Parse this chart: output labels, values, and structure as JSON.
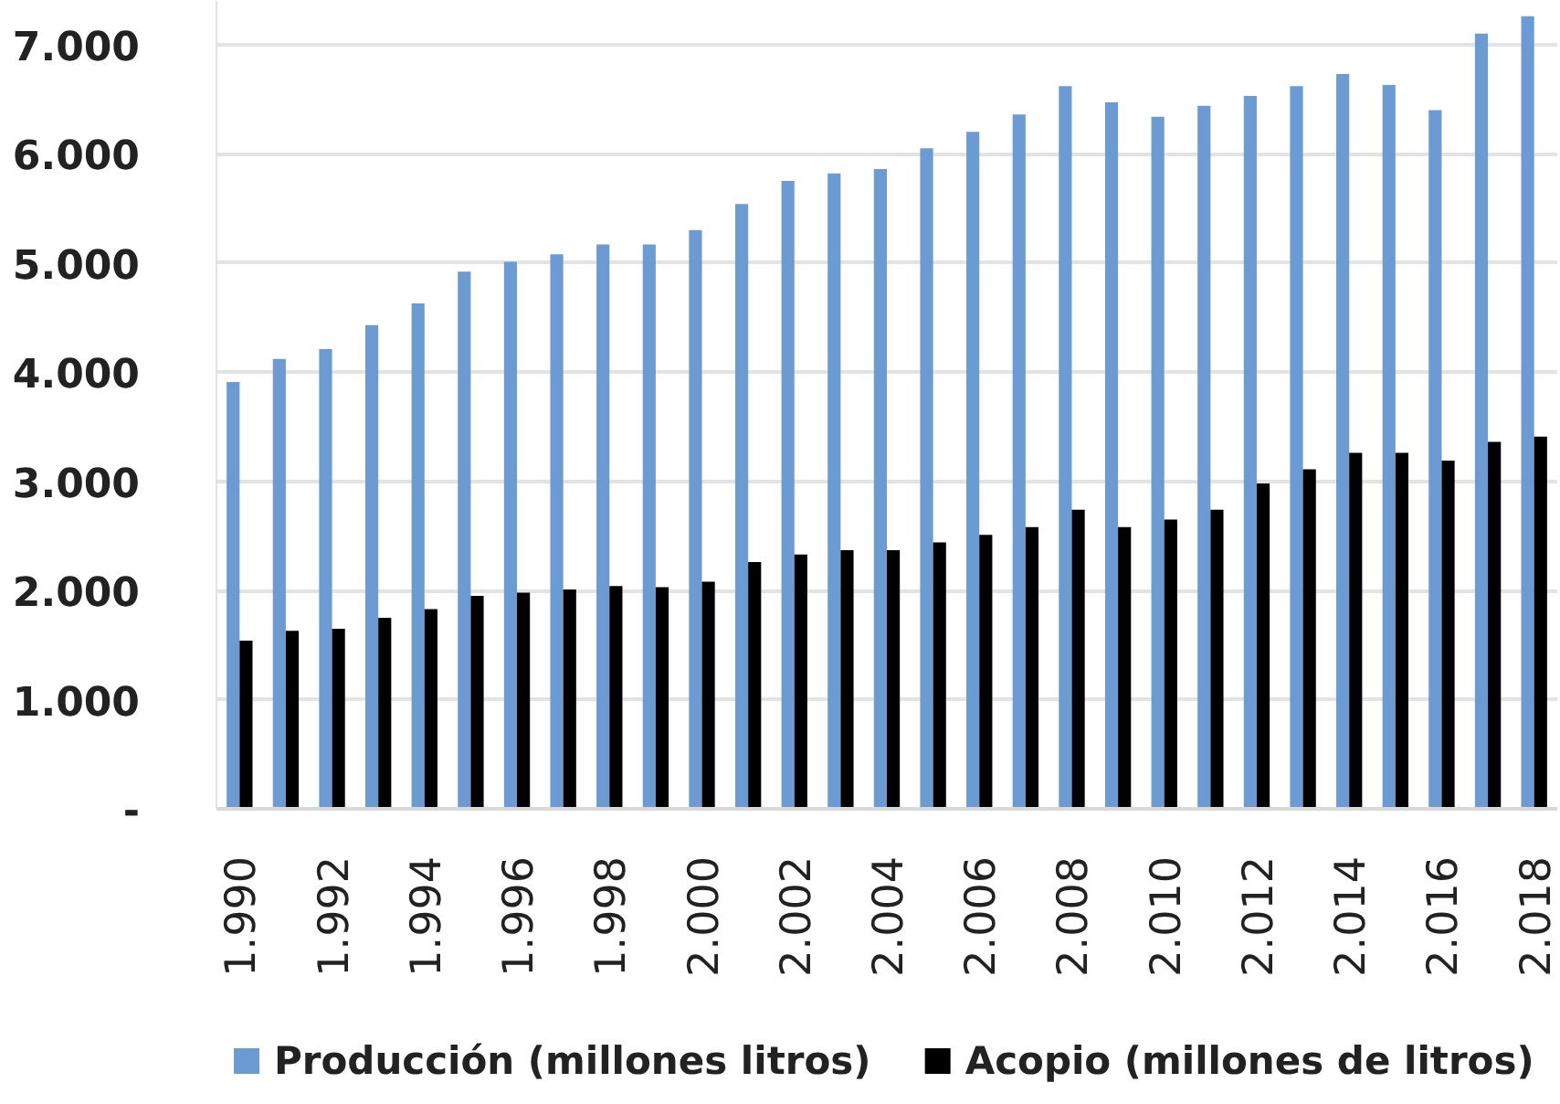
{
  "chart_data": {
    "type": "bar",
    "categories": [
      "1.990",
      null,
      "1.992",
      null,
      "1.994",
      null,
      "1.996",
      null,
      "1.998",
      null,
      "2.000",
      null,
      "2.002",
      null,
      "2.004",
      null,
      "2.006",
      null,
      "2.008",
      null,
      "2.010",
      null,
      "2.012",
      null,
      "2.014",
      null,
      "2.016",
      null,
      "2.018"
    ],
    "series": [
      {
        "name": "Producción (millones litros)",
        "color": "#6b9bd2",
        "values": [
          3910,
          4120,
          4210,
          4430,
          4630,
          4920,
          5010,
          5080,
          5170,
          5170,
          5300,
          5540,
          5750,
          5820,
          5860,
          6050,
          6200,
          6360,
          6620,
          6470,
          6340,
          6440,
          6530,
          6620,
          6730,
          6630,
          6400,
          7100,
          7260
        ]
      },
      {
        "name": "Acopio (millones de litros)",
        "color": "#000000",
        "values": [
          1540,
          1630,
          1650,
          1750,
          1830,
          1950,
          1980,
          2010,
          2040,
          2030,
          2080,
          2260,
          2330,
          2370,
          2370,
          2440,
          2510,
          2580,
          2740,
          2580,
          2650,
          2740,
          2980,
          3110,
          3260,
          3260,
          3190,
          3360,
          3410
        ]
      }
    ],
    "ylim": [
      0,
      7400
    ],
    "yticks": [
      {
        "value": 0,
        "label": "-"
      },
      {
        "value": 1000,
        "label": "1.000"
      },
      {
        "value": 2000,
        "label": "2.000"
      },
      {
        "value": 3000,
        "label": "3.000"
      },
      {
        "value": 4000,
        "label": "4.000"
      },
      {
        "value": 5000,
        "label": "5.000"
      },
      {
        "value": 6000,
        "label": "6.000"
      },
      {
        "value": 7000,
        "label": "7.000"
      }
    ],
    "grid": "y",
    "legend": "bottom"
  }
}
